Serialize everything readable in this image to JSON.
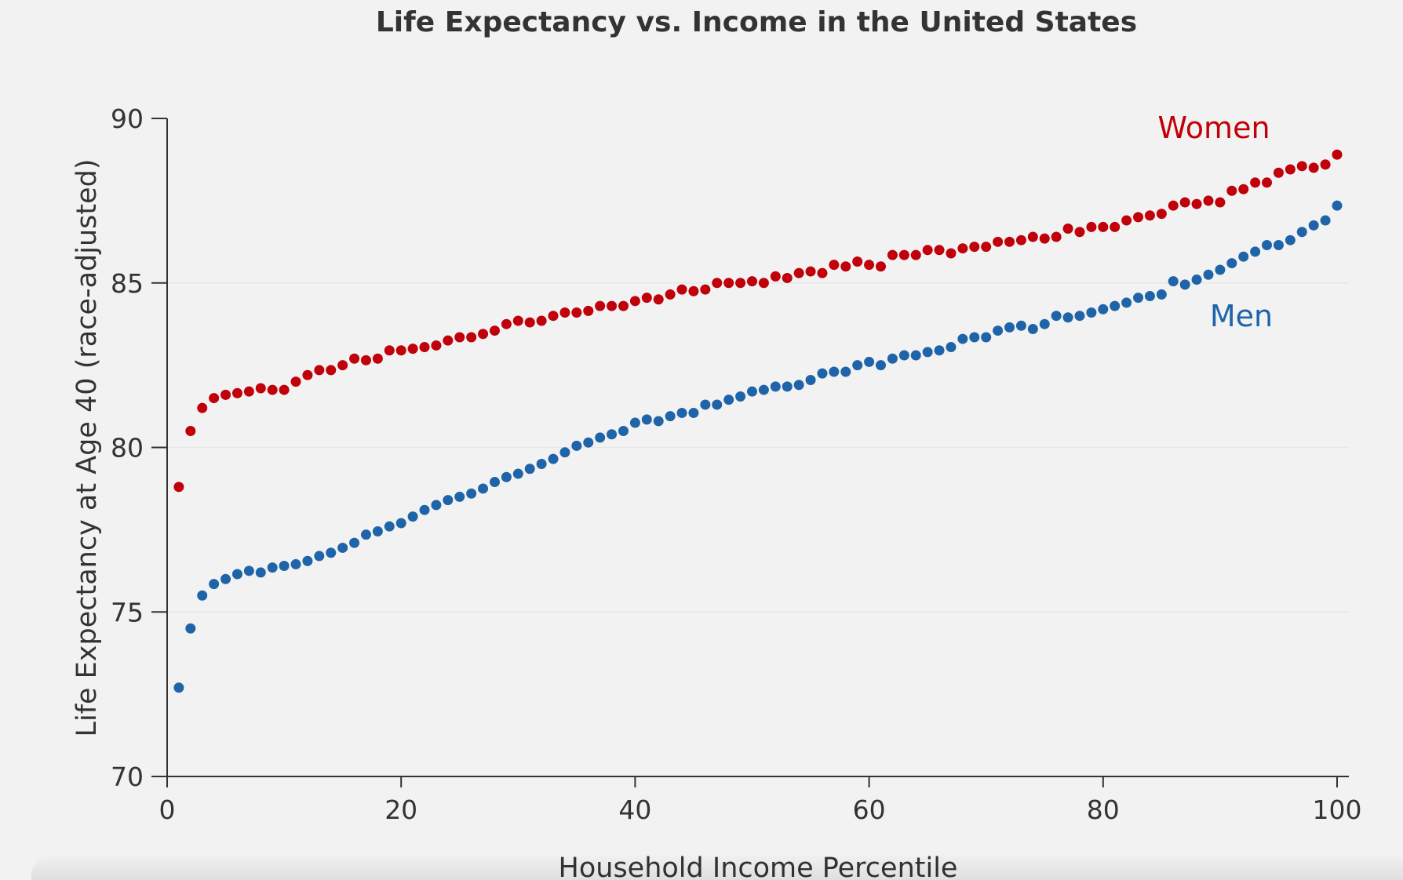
{
  "chart_data": {
    "type": "scatter",
    "title": "Life Expectancy vs. Income in the United States",
    "xlabel": "Household Income Percentile",
    "ylabel": "Life Expectancy at Age 40 (race-adjusted)",
    "xlim": [
      0,
      100
    ],
    "ylim": [
      70,
      90
    ],
    "xticks": [
      0,
      20,
      40,
      60,
      80,
      100
    ],
    "yticks": [
      70,
      75,
      80,
      85,
      90
    ],
    "grid": "horizontal",
    "colors": {
      "women": "#c0000a",
      "men": "#1f64a8",
      "text": "#333333",
      "grid": "#e6e6e6"
    },
    "x": [
      1,
      2,
      3,
      4,
      5,
      6,
      7,
      8,
      9,
      10,
      11,
      12,
      13,
      14,
      15,
      16,
      17,
      18,
      19,
      20,
      21,
      22,
      23,
      24,
      25,
      26,
      27,
      28,
      29,
      30,
      31,
      32,
      33,
      34,
      35,
      36,
      37,
      38,
      39,
      40,
      41,
      42,
      43,
      44,
      45,
      46,
      47,
      48,
      49,
      50,
      51,
      52,
      53,
      54,
      55,
      56,
      57,
      58,
      59,
      60,
      61,
      62,
      63,
      64,
      65,
      66,
      67,
      68,
      69,
      70,
      71,
      72,
      73,
      74,
      75,
      76,
      77,
      78,
      79,
      80,
      81,
      82,
      83,
      84,
      85,
      86,
      87,
      88,
      89,
      90,
      91,
      92,
      93,
      94,
      95,
      96,
      97,
      98,
      99,
      100
    ],
    "series": [
      {
        "name": "Women",
        "color": "#c0000a",
        "values": [
          78.8,
          80.5,
          81.2,
          81.5,
          81.6,
          81.65,
          81.7,
          81.8,
          81.75,
          81.75,
          82.0,
          82.2,
          82.35,
          82.35,
          82.5,
          82.7,
          82.65,
          82.7,
          82.95,
          82.95,
          83.0,
          83.05,
          83.1,
          83.25,
          83.35,
          83.35,
          83.45,
          83.55,
          83.75,
          83.85,
          83.8,
          83.85,
          84.0,
          84.1,
          84.1,
          84.15,
          84.3,
          84.3,
          84.3,
          84.45,
          84.55,
          84.5,
          84.65,
          84.8,
          84.75,
          84.8,
          85.0,
          85.0,
          85.0,
          85.05,
          85.0,
          85.2,
          85.15,
          85.3,
          85.35,
          85.3,
          85.55,
          85.5,
          85.65,
          85.55,
          85.5,
          85.85,
          85.85,
          85.85,
          86.0,
          86.0,
          85.9,
          86.05,
          86.1,
          86.1,
          86.25,
          86.25,
          86.3,
          86.4,
          86.35,
          86.4,
          86.65,
          86.55,
          86.7,
          86.7,
          86.7,
          86.9,
          87.0,
          87.05,
          87.1,
          87.35,
          87.45,
          87.4,
          87.5,
          87.45,
          87.8,
          87.85,
          88.05,
          88.05,
          88.35,
          88.45,
          88.55,
          88.5,
          88.6,
          88.9
        ]
      },
      {
        "name": "Men",
        "color": "#1f64a8",
        "values": [
          72.7,
          74.5,
          75.5,
          75.85,
          76.0,
          76.15,
          76.25,
          76.2,
          76.35,
          76.4,
          76.45,
          76.55,
          76.7,
          76.8,
          76.95,
          77.1,
          77.35,
          77.45,
          77.6,
          77.7,
          77.9,
          78.1,
          78.25,
          78.4,
          78.5,
          78.6,
          78.75,
          78.95,
          79.1,
          79.2,
          79.35,
          79.5,
          79.65,
          79.85,
          80.05,
          80.15,
          80.3,
          80.4,
          80.5,
          80.75,
          80.85,
          80.8,
          80.95,
          81.05,
          81.05,
          81.3,
          81.3,
          81.45,
          81.55,
          81.7,
          81.75,
          81.85,
          81.85,
          81.9,
          82.05,
          82.25,
          82.3,
          82.3,
          82.5,
          82.6,
          82.5,
          82.7,
          82.8,
          82.8,
          82.9,
          82.95,
          83.05,
          83.3,
          83.35,
          83.35,
          83.55,
          83.65,
          83.7,
          83.6,
          83.75,
          84.0,
          83.95,
          84.0,
          84.1,
          84.2,
          84.3,
          84.4,
          84.55,
          84.6,
          84.65,
          85.05,
          84.95,
          85.1,
          85.25,
          85.4,
          85.6,
          85.8,
          85.95,
          86.15,
          86.15,
          86.3,
          86.55,
          86.75,
          86.9,
          87.35
        ]
      }
    ]
  }
}
